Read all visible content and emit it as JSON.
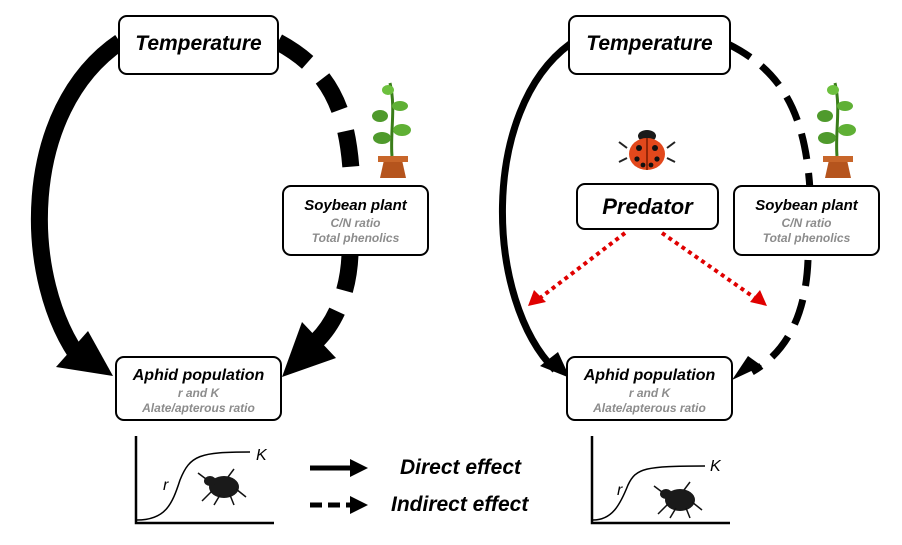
{
  "left_panel": {
    "temperature": "Temperature",
    "soybean": {
      "title": "Soybean plant",
      "line1": "C/N ratio",
      "line2": "Total phenolics"
    },
    "aphid": {
      "title": "Aphid population",
      "line1": "r and K",
      "line2": "Alate/apterous ratio"
    }
  },
  "right_panel": {
    "temperature": "Temperature",
    "predator": "Predator",
    "soybean": {
      "title": "Soybean plant",
      "line1": "C/N ratio",
      "line2": "Total phenolics"
    },
    "aphid": {
      "title": "Aphid population",
      "line1": "r and K",
      "line2": "Alate/apterous ratio"
    }
  },
  "legend": {
    "direct": "Direct effect",
    "indirect": "Indirect effect"
  },
  "growth_curves": {
    "left": {
      "r_label": "r",
      "k_label": "K"
    },
    "right": {
      "r_label": "r",
      "k_label": "K"
    }
  },
  "colors": {
    "predation_arrow": "#e00000",
    "secondary_text": "#8c8c8c"
  }
}
